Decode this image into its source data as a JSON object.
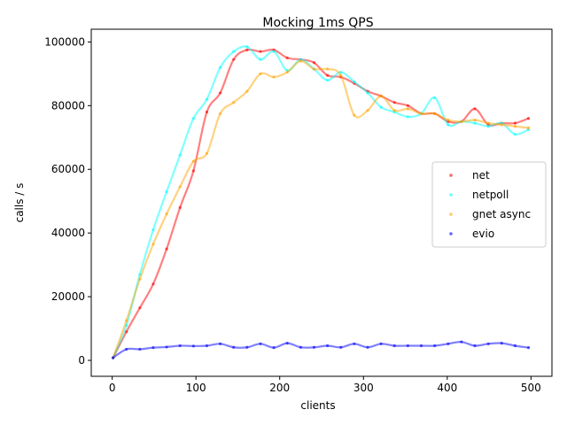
{
  "chart_data": {
    "type": "line",
    "title": "Mocking 1ms QPS",
    "xlabel": "clients",
    "ylabel": "calls / s",
    "xlim": [
      -25,
      525
    ],
    "ylim": [
      -5000,
      104000
    ],
    "x_ticks": [
      0,
      100,
      200,
      300,
      400,
      500
    ],
    "y_ticks": [
      0,
      20000,
      40000,
      60000,
      80000,
      100000
    ],
    "grid": false,
    "legend_position": "center-right",
    "x": [
      1,
      17,
      33,
      49,
      65,
      81,
      97,
      113,
      129,
      145,
      161,
      177,
      193,
      209,
      225,
      241,
      257,
      273,
      289,
      305,
      321,
      337,
      353,
      369,
      385,
      401,
      417,
      433,
      449,
      465,
      481,
      497
    ],
    "series": [
      {
        "name": "net",
        "color": "#ff0000",
        "values": [
          800,
          9000,
          16500,
          24000,
          35000,
          48000,
          59500,
          78000,
          84000,
          94500,
          97500,
          97000,
          97500,
          95000,
          94500,
          93500,
          89500,
          89000,
          87000,
          84500,
          83000,
          81000,
          80000,
          77500,
          77500,
          75000,
          75000,
          79000,
          74000,
          74500,
          74500,
          76000
        ]
      },
      {
        "name": "netpoll",
        "color": "#00ffff",
        "values": [
          800,
          11000,
          27000,
          41000,
          53000,
          64500,
          76000,
          82000,
          92000,
          97000,
          98500,
          94500,
          97000,
          91000,
          94500,
          91500,
          88000,
          90500,
          87500,
          84000,
          79500,
          78000,
          76500,
          77500,
          82500,
          74000,
          75000,
          74500,
          73500,
          74500,
          71000,
          72500
        ]
      },
      {
        "name": "gnet async",
        "color": "#ffa500",
        "values": [
          800,
          12500,
          25500,
          36500,
          46000,
          54500,
          62500,
          65000,
          77500,
          81000,
          84500,
          90000,
          89000,
          90500,
          94000,
          91500,
          91500,
          89500,
          77000,
          78500,
          83000,
          78500,
          79000,
          77500,
          77500,
          75500,
          75000,
          75500,
          74500,
          74000,
          73500,
          73000
        ]
      },
      {
        "name": "evio",
        "color": "#0000ff",
        "values": [
          800,
          3500,
          3500,
          4000,
          4200,
          4600,
          4500,
          4600,
          5200,
          4100,
          4100,
          5200,
          4000,
          5400,
          4100,
          4100,
          4600,
          4100,
          5200,
          4100,
          5200,
          4600,
          4600,
          4600,
          4600,
          5200,
          5800,
          4600,
          5200,
          5400,
          4600,
          4000
        ]
      }
    ]
  }
}
